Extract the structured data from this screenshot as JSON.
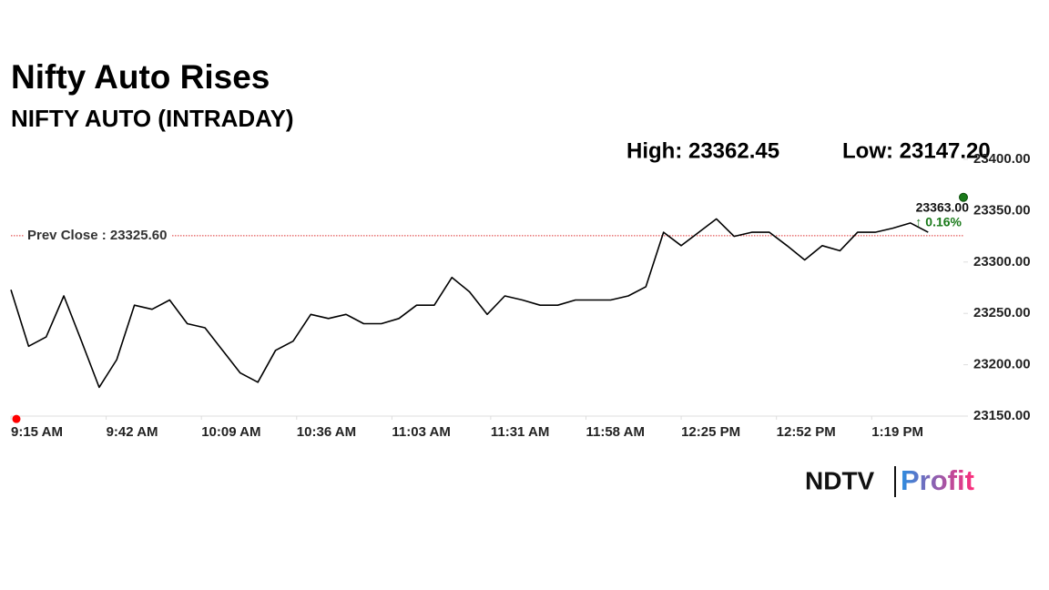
{
  "chart_data": {
    "type": "line",
    "title": "Nifty Auto Rises",
    "subtitle": "NIFTY AUTO (INTRADAY)",
    "high": {
      "value": 23362.45,
      "label": "High: 23362.45"
    },
    "low": {
      "value": 23147.2,
      "label": "Low: 23147.20"
    },
    "prev_close": {
      "value": 23325.6,
      "label": "Prev Close : 23325.60"
    },
    "last": {
      "value": 23363,
      "label": "23363.00",
      "change": "↑ 0.16%"
    },
    "x": [
      "9:15 AM",
      "9:20 AM",
      "9:25 AM",
      "9:30 AM",
      "9:35 AM",
      "9:40 AM",
      "9:45 AM",
      "9:50 AM",
      "9:55 AM",
      "10:00 AM",
      "10:05 AM",
      "10:10 AM",
      "10:15 AM",
      "10:20 AM",
      "10:25 AM",
      "10:30 AM",
      "10:35 AM",
      "10:40 AM",
      "10:45 AM",
      "10:50 AM",
      "10:55 AM",
      "11:00 AM",
      "11:05 AM",
      "11:10 AM",
      "11:15 AM",
      "11:20 AM",
      "11:25 AM",
      "11:30 AM",
      "11:35 AM",
      "11:40 AM",
      "11:45 AM",
      "11:50 AM",
      "11:55 AM",
      "12:00 PM",
      "12:05 PM",
      "12:10 PM",
      "12:15 PM",
      "12:20 PM",
      "12:25 PM",
      "12:30 PM",
      "12:35 PM",
      "12:40 PM",
      "12:45 PM",
      "12:50 PM",
      "12:55 PM",
      "1:00 PM",
      "1:05 PM",
      "1:10 PM",
      "1:15 PM",
      "1:20 PM",
      "1:25 PM",
      "1:30 PM",
      "1:35 PM"
    ],
    "values": [
      23273,
      23218,
      23227,
      23267,
      23223,
      23178,
      23205,
      23258,
      23254,
      23263,
      23240,
      23236,
      23214,
      23192,
      23183,
      23214,
      23223,
      23249,
      23245,
      23249,
      23240,
      23240,
      23245,
      23258,
      23258,
      23285,
      23271,
      23249,
      23267,
      23263,
      23258,
      23258,
      23263,
      23263,
      23263,
      23267,
      23276,
      23329,
      23316,
      23329,
      23342,
      23325,
      23329,
      23329,
      23316,
      23302,
      23316,
      23311,
      23329,
      23329,
      23333,
      23338,
      23329
    ],
    "color": "#000000",
    "xlim": [
      "9:15 AM",
      "1:45 PM"
    ],
    "xticks": [
      "9:15 AM",
      "9:42 AM",
      "10:09 AM",
      "10:36 AM",
      "11:03 AM",
      "11:31 AM",
      "11:58 AM",
      "12:25 PM",
      "12:52 PM",
      "1:19 PM"
    ],
    "ylim": [
      23150,
      23400
    ],
    "yticks": [
      {
        "value": 23150,
        "label": "23150.00"
      },
      {
        "value": 23200,
        "label": "23200.00"
      },
      {
        "value": 23250,
        "label": "23250.00"
      },
      {
        "value": 23300,
        "label": "23300.00"
      },
      {
        "value": 23350,
        "label": "23350.00"
      },
      {
        "value": 23400,
        "label": "23400.00"
      }
    ],
    "logo": [
      "NDTV",
      "Profit"
    ]
  }
}
